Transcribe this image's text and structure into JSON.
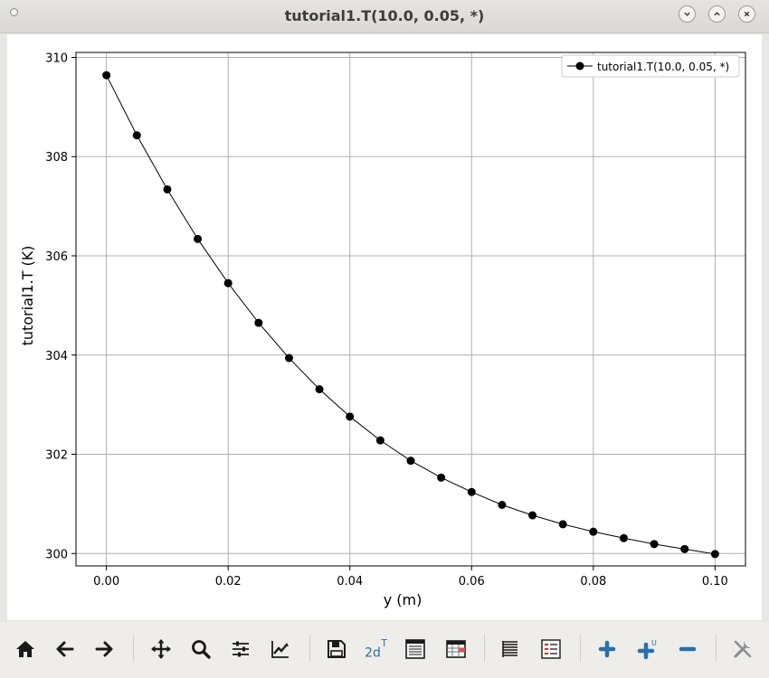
{
  "window": {
    "title": "tutorial1.T(10.0, 0.05, *)"
  },
  "toolbar": {
    "items": [
      {
        "name": "home-icon"
      },
      {
        "name": "back-icon"
      },
      {
        "name": "forward-icon"
      },
      {
        "name": "pan-icon"
      },
      {
        "name": "zoom-icon"
      },
      {
        "name": "subplot-config-icon"
      },
      {
        "name": "axes-edit-icon"
      },
      {
        "name": "save-icon"
      },
      {
        "name": "transpose-2d-icon"
      },
      {
        "name": "data-table-icon"
      },
      {
        "name": "spreadsheet-icon"
      },
      {
        "name": "list-icon"
      },
      {
        "name": "legend-icon"
      },
      {
        "name": "add-icon"
      },
      {
        "name": "add-unit-icon"
      },
      {
        "name": "remove-icon"
      },
      {
        "name": "tools-icon"
      }
    ],
    "label_2d": "2d",
    "label_T": "T",
    "label_U": "U",
    "accent_color": "#2a6fa8"
  },
  "chart_data": {
    "type": "line",
    "title": "",
    "xlabel": "y (m)",
    "ylabel": "tutorial1.T (K)",
    "xlim": [
      -0.005,
      0.105
    ],
    "ylim": [
      299.75,
      310.1
    ],
    "xticks": [
      0.0,
      0.02,
      0.04,
      0.06,
      0.08,
      0.1
    ],
    "xtick_labels": [
      "0.00",
      "0.02",
      "0.04",
      "0.06",
      "0.08",
      "0.10"
    ],
    "yticks": [
      300,
      302,
      304,
      306,
      308,
      310
    ],
    "ytick_labels": [
      "300",
      "302",
      "304",
      "306",
      "308",
      "310"
    ],
    "grid": true,
    "legend_position": "top-right",
    "series": [
      {
        "name": "tutorial1.T(10.0, 0.05, *)",
        "color": "#000000",
        "marker": "circle",
        "x": [
          0.0,
          0.005,
          0.01,
          0.015,
          0.02,
          0.025,
          0.03,
          0.035,
          0.04,
          0.045,
          0.05,
          0.055,
          0.06,
          0.065,
          0.07,
          0.075,
          0.08,
          0.085,
          0.09,
          0.095,
          0.1
        ],
        "values": [
          309.64,
          308.43,
          307.34,
          306.34,
          305.45,
          304.65,
          303.94,
          303.31,
          302.76,
          302.28,
          301.87,
          301.53,
          301.24,
          300.98,
          300.77,
          300.59,
          300.44,
          300.31,
          300.19,
          300.09,
          299.99
        ]
      }
    ]
  }
}
